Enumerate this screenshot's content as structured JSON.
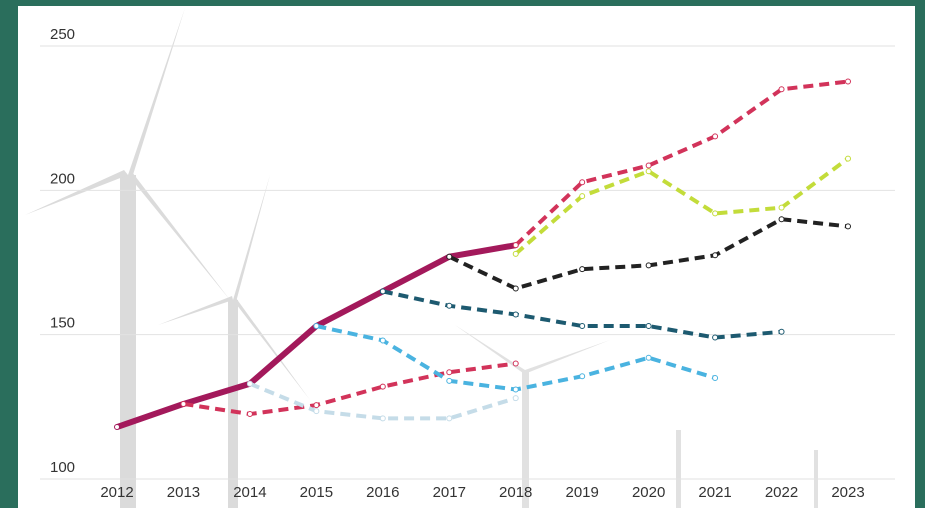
{
  "chart_data": {
    "type": "line",
    "x": [
      2012,
      2013,
      2014,
      2015,
      2016,
      2017,
      2018,
      2019,
      2020,
      2021,
      2022,
      2023
    ],
    "xticks": [
      2012,
      2013,
      2014,
      2015,
      2016,
      2017,
      2018,
      2019,
      2020,
      2021,
      2022,
      2023
    ],
    "xlim": [
      2012,
      2023
    ],
    "ylim": [
      100,
      250
    ],
    "yticks": [
      100,
      150,
      200,
      250
    ],
    "grid": true,
    "series": [
      {
        "color": "#a3195b",
        "style": "solid",
        "values": [
          118,
          126,
          133,
          153,
          165,
          177,
          181,
          null,
          null,
          null,
          null,
          null
        ]
      },
      {
        "color": "#d2335a",
        "style": "dashed",
        "values": [
          null,
          126,
          122.5,
          125.6,
          132,
          137,
          140,
          null,
          null,
          null,
          null,
          null
        ]
      },
      {
        "color": "#c5dce8",
        "style": "dashed",
        "values": [
          null,
          null,
          133,
          123.5,
          121,
          121,
          128,
          null,
          null,
          null,
          null,
          null
        ]
      },
      {
        "color": "#4ab3e0",
        "style": "dashed",
        "values": [
          null,
          null,
          null,
          153,
          148,
          134,
          131,
          135.6,
          142,
          135,
          null,
          null
        ]
      },
      {
        "color": "#1d5a70",
        "style": "dashed",
        "values": [
          null,
          null,
          null,
          null,
          165,
          160,
          157,
          153,
          153,
          149,
          151,
          null
        ]
      },
      {
        "color": "#222222",
        "style": "dashed",
        "values": [
          null,
          null,
          null,
          null,
          null,
          177,
          166,
          172.7,
          174,
          177.5,
          190,
          187.5
        ]
      },
      {
        "color": "#c3dc3a",
        "style": "dashed",
        "values": [
          null,
          null,
          null,
          null,
          null,
          null,
          178,
          198,
          206.6,
          192,
          194,
          211
        ]
      },
      {
        "color": "#d2335a",
        "style": "dashed",
        "values": [
          null,
          null,
          null,
          null,
          null,
          null,
          181,
          202.8,
          208.6,
          218.7,
          235,
          237.7
        ]
      }
    ]
  }
}
